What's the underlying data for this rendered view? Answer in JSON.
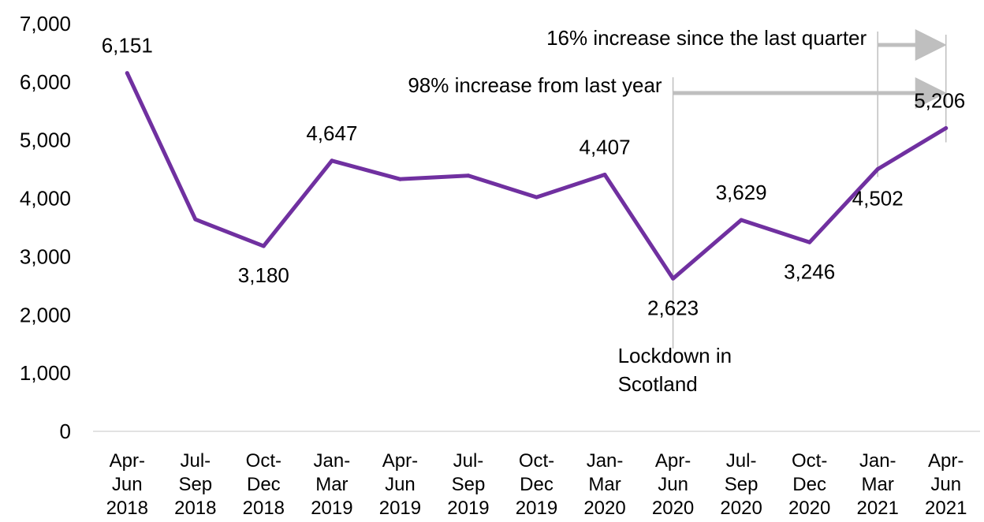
{
  "chart_data": {
    "type": "line",
    "title": "",
    "xlabel": "",
    "ylabel": "",
    "ylim": [
      0,
      7000
    ],
    "yticks": [
      "0",
      "1,000",
      "2,000",
      "3,000",
      "4,000",
      "5,000",
      "6,000",
      "7,000"
    ],
    "grid": false,
    "legend": "none",
    "line_color": "#7030A0",
    "arrow_color": "#BFBFBF",
    "categories": [
      [
        "Apr-",
        "Jun",
        "2018"
      ],
      [
        "Jul-",
        "Sep",
        "2018"
      ],
      [
        "Oct-",
        "Dec",
        "2018"
      ],
      [
        "Jan-",
        "Mar",
        "2019"
      ],
      [
        "Apr-",
        "Jun",
        "2019"
      ],
      [
        "Jul-",
        "Sep",
        "2019"
      ],
      [
        "Oct-",
        "Dec",
        "2019"
      ],
      [
        "Jan-",
        "Mar",
        "2020"
      ],
      [
        "Apr-",
        "Jun",
        "2020"
      ],
      [
        "Jul-",
        "Sep",
        "2020"
      ],
      [
        "Oct-",
        "Dec",
        "2020"
      ],
      [
        "Jan-",
        "Mar",
        "2021"
      ],
      [
        "Apr-",
        "Jun",
        "2021"
      ]
    ],
    "values": [
      6151,
      3640,
      3180,
      4647,
      4330,
      4390,
      4020,
      4407,
      2623,
      3629,
      3246,
      4502,
      5206
    ],
    "data_labels": [
      {
        "index": 0,
        "text": "6,151",
        "position": "above"
      },
      {
        "index": 2,
        "text": "3,180",
        "position": "below"
      },
      {
        "index": 3,
        "text": "4,647",
        "position": "above"
      },
      {
        "index": 7,
        "text": "4,407",
        "position": "above"
      },
      {
        "index": 8,
        "text": "2,623",
        "position": "below"
      },
      {
        "index": 9,
        "text": "3,629",
        "position": "above"
      },
      {
        "index": 10,
        "text": "3,246",
        "position": "below"
      },
      {
        "index": 11,
        "text": "4,502",
        "position": "below"
      },
      {
        "index": 12,
        "text": "5,206",
        "position": "above"
      }
    ],
    "annotations": [
      {
        "text": "16% increase since the last quarter",
        "from_index": 11,
        "to_index": 12
      },
      {
        "text": "98% increase from last year",
        "from_index": 8,
        "to_index": 12
      },
      {
        "text_lines": [
          "Lockdown in",
          "Scotland"
        ],
        "at_index": 8
      }
    ]
  }
}
